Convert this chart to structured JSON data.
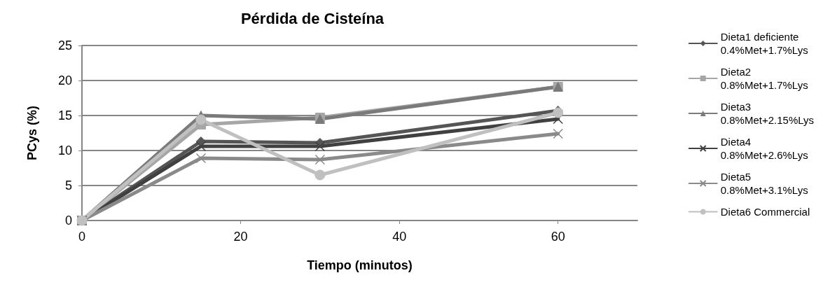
{
  "chart_data": {
    "type": "line",
    "title": "Pérdida de Cisteína",
    "xlabel": "Tiempo (minutos)",
    "ylabel": "PCys (%)",
    "x": [
      0,
      15,
      30,
      60
    ],
    "xlim": [
      0,
      70
    ],
    "xticks": [
      0,
      20,
      40,
      60
    ],
    "ylim": [
      0,
      25
    ],
    "yticks": [
      0,
      5,
      10,
      15,
      20,
      25
    ],
    "grid": "y",
    "legend": "right",
    "line_style": "solid",
    "series": [
      {
        "name": "Dieta1 deficiente\n0.4%Met+1.7%Lys",
        "color": "#555555",
        "marker": "diamond",
        "values": [
          0,
          11.3,
          11.1,
          15.7
        ]
      },
      {
        "name": "Dieta2\n0.8%Met+1.7%Lys",
        "color": "#a6a6a6",
        "marker": "square",
        "values": [
          0,
          13.7,
          14.7,
          19.1
        ]
      },
      {
        "name": "Dieta3\n0.8%Met+2.15%Lys",
        "color": "#7a7a7a",
        "marker": "triangle",
        "values": [
          0,
          15,
          14.5,
          19.1
        ]
      },
      {
        "name": "Dieta4\n0.8%Met+2.6%Lys",
        "color": "#404040",
        "marker": "cross",
        "values": [
          0,
          10.6,
          10.6,
          14.5
        ]
      },
      {
        "name": "Dieta5\n0.8%Met+3.1%Lys",
        "color": "#8a8a8a",
        "marker": "cross",
        "values": [
          0,
          8.9,
          8.7,
          12.4
        ]
      },
      {
        "name": "Dieta6 Commercial",
        "color": "#c0c0c0",
        "marker": "circle",
        "values": [
          0,
          14.4,
          6.5,
          15.4
        ]
      }
    ]
  }
}
